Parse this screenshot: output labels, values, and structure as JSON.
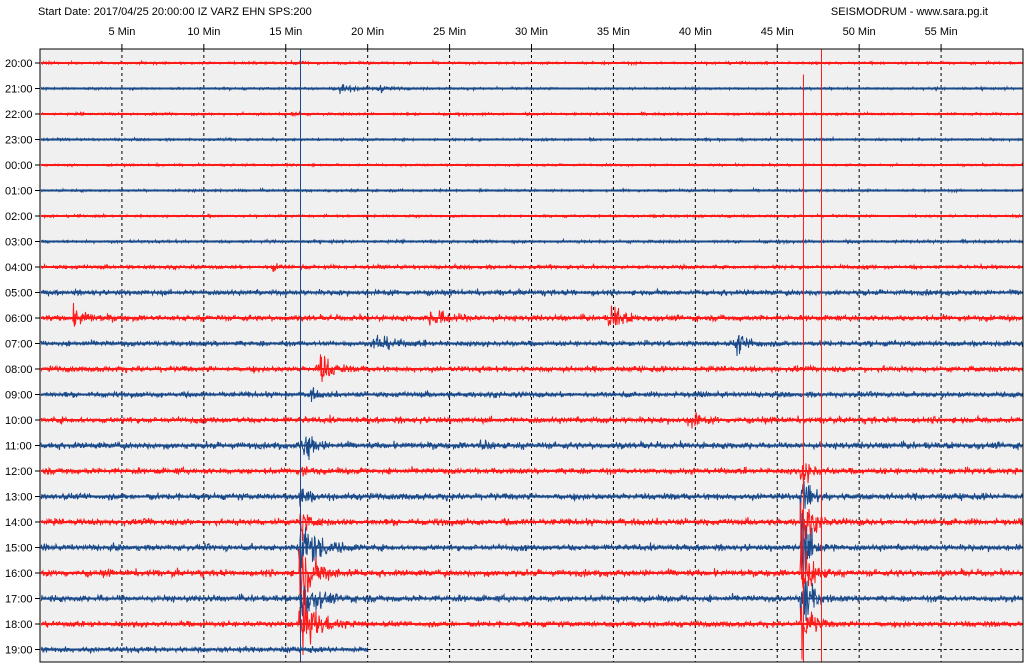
{
  "header": {
    "start_info": "Start Date: 2017/04/25 20:00:00 IZ VARZ EHN SPS:200",
    "site": "SEISMODRUM - www.sara.pg.it"
  },
  "chart_data": {
    "type": "line",
    "title": "",
    "x_tick_labels": [
      "5 Min",
      "10 Min",
      "15 Min",
      "20 Min",
      "25 Min",
      "30 Min",
      "35 Min",
      "40 Min",
      "45 Min",
      "50 Min",
      "55 Min"
    ],
    "x_tick_values": [
      5,
      10,
      15,
      20,
      25,
      30,
      35,
      40,
      45,
      50,
      55
    ],
    "xlim": [
      0,
      60
    ],
    "row_labels": [
      "20:00",
      "21:00",
      "22:00",
      "23:00",
      "00:00",
      "01:00",
      "02:00",
      "03:00",
      "04:00",
      "05:00",
      "06:00",
      "07:00",
      "08:00",
      "09:00",
      "10:00",
      "11:00",
      "12:00",
      "13:00",
      "14:00",
      "15:00",
      "16:00",
      "17:00",
      "18:00",
      "19:00"
    ],
    "colors": {
      "odd": "#ff1a1a",
      "even": "#1a4a8a",
      "plot_bg": "#f0f0f0",
      "grid": "#000000"
    },
    "grid": true,
    "last_trace_end_min": 20,
    "noise_levels": [
      0.3,
      0.3,
      0.3,
      0.3,
      0.25,
      0.3,
      0.3,
      0.35,
      0.45,
      0.65,
      0.7,
      0.65,
      0.7,
      0.65,
      0.75,
      0.8,
      0.75,
      0.8,
      0.8,
      0.75,
      0.8,
      0.8,
      0.7,
      0.7
    ],
    "events": [
      {
        "row": 0,
        "minute": 15.5,
        "amp": 1.2,
        "decay": 0.4
      },
      {
        "row": 1,
        "minute": 18.3,
        "amp": 4,
        "decay": 0.6
      },
      {
        "row": 1,
        "minute": 20.7,
        "amp": 2.5,
        "decay": 0.5
      },
      {
        "row": 2,
        "minute": 15.3,
        "amp": 2,
        "decay": 0.3
      },
      {
        "row": 8,
        "minute": 14.2,
        "amp": 5,
        "decay": 0.2
      },
      {
        "row": 10,
        "minute": 2.0,
        "amp": 6,
        "decay": 0.8
      },
      {
        "row": 10,
        "minute": 23.8,
        "amp": 6,
        "decay": 1.2
      },
      {
        "row": 10,
        "minute": 34.8,
        "amp": 12,
        "decay": 0.6
      },
      {
        "row": 11,
        "minute": 20.5,
        "amp": 7,
        "decay": 0.8
      },
      {
        "row": 11,
        "minute": 42.5,
        "amp": 7,
        "decay": 0.7
      },
      {
        "row": 12,
        "minute": 17.0,
        "amp": 14,
        "decay": 0.6
      },
      {
        "row": 13,
        "minute": 16.5,
        "amp": 4,
        "decay": 0.4
      },
      {
        "row": 14,
        "minute": 39.7,
        "amp": 8,
        "decay": 0.4
      },
      {
        "row": 15,
        "minute": 27.0,
        "amp": 6,
        "decay": 0.4
      },
      {
        "row": 15,
        "minute": 16.2,
        "amp": 14,
        "decay": 0.4
      }
    ],
    "quake1": {
      "minute": 15.9,
      "start_row": 14,
      "peak_row": 19,
      "peak_amp": 22,
      "coda_row": 22,
      "color": "#1a4a8a"
    },
    "quake2": {
      "minute": 46.6,
      "start_row": 16,
      "peak_row": 20,
      "peak_amp": 28,
      "color": "#ff1a1a"
    },
    "markers": [
      {
        "minute": 15.9,
        "from_row": 0,
        "to_row": 23,
        "color": "#1a4a8a"
      },
      {
        "minute": 46.6,
        "from_row": 1,
        "to_row": 23,
        "color": "#ff1a1a"
      },
      {
        "minute": 47.7,
        "from_row": 0,
        "to_row": 23,
        "color": "#ff1a1a"
      }
    ]
  }
}
